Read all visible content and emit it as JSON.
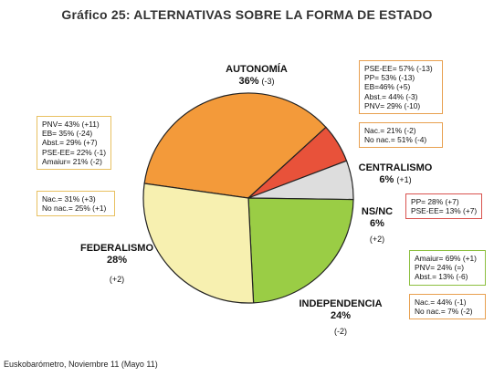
{
  "chart_data": {
    "type": "pie",
    "title": "Gráfico 25: ALTERNATIVAS SOBRE LA FORMA DE ESTADO",
    "slices": [
      {
        "label": "AUTONOMÍA",
        "value": 36,
        "value_label": "36%",
        "change": "(-3)",
        "color": "#f39a3a"
      },
      {
        "label": "CENTRALISMO",
        "value": 6,
        "value_label": "6%",
        "change": "(+1)",
        "color": "#e8523a"
      },
      {
        "label": "NS/NC",
        "value": 6,
        "value_label": "6%",
        "change": "(+2)",
        "color": "#dddddd"
      },
      {
        "label": "INDEPENDENCIA",
        "value": 24,
        "value_label": "24%",
        "change": "(-2)",
        "color": "#9acd45"
      },
      {
        "label": "FEDERALISMO",
        "value": 28,
        "value_label": "28%",
        "change": "(+2)",
        "color": "#f7f0b0"
      }
    ],
    "annotation_boxes": [
      {
        "id": "autonomia-party",
        "border": "#e8a050",
        "lines": [
          "PSE-EE= 57% (-13)",
          "PP= 53% (-13)",
          "EB=46% (+5)",
          "Abst.= 44% (-3)",
          "PNV= 29% (-10)"
        ]
      },
      {
        "id": "centralismo-origin",
        "border": "#e8a050",
        "lines": [
          "Nac.= 21% (-2)",
          "No nac.= 51% (-4)"
        ]
      },
      {
        "id": "nsnc-party",
        "border": "#d9534f",
        "lines": [
          "PP= 28% (+7)",
          "PSE-EE= 13% (+7)"
        ]
      },
      {
        "id": "federalismo-party",
        "border": "#e8c060",
        "lines": [
          "PNV= 43% (+11)",
          "EB= 35% (-24)",
          "Abst.= 29% (+7)",
          "PSE-EE= 22% (-1)",
          "Amaiur= 21% (-2)"
        ]
      },
      {
        "id": "federalismo-origin",
        "border": "#e8c060",
        "lines": [
          "Nac.= 31% (+3)",
          "No nac.= 25% (+1)"
        ]
      },
      {
        "id": "independencia-party",
        "border": "#8cbf3f",
        "lines": [
          "Amaiur= 69% (+1)",
          "PNV= 24% (=)",
          "Abst.= 13% (-6)"
        ]
      },
      {
        "id": "independencia-origin",
        "border": "#e8a050",
        "lines": [
          "Nac.= 44% (-1)",
          "No nac.= 7% (-2)"
        ]
      }
    ]
  },
  "footer": "Euskobarómetro, Noviembre 11 (Mayo 11)"
}
